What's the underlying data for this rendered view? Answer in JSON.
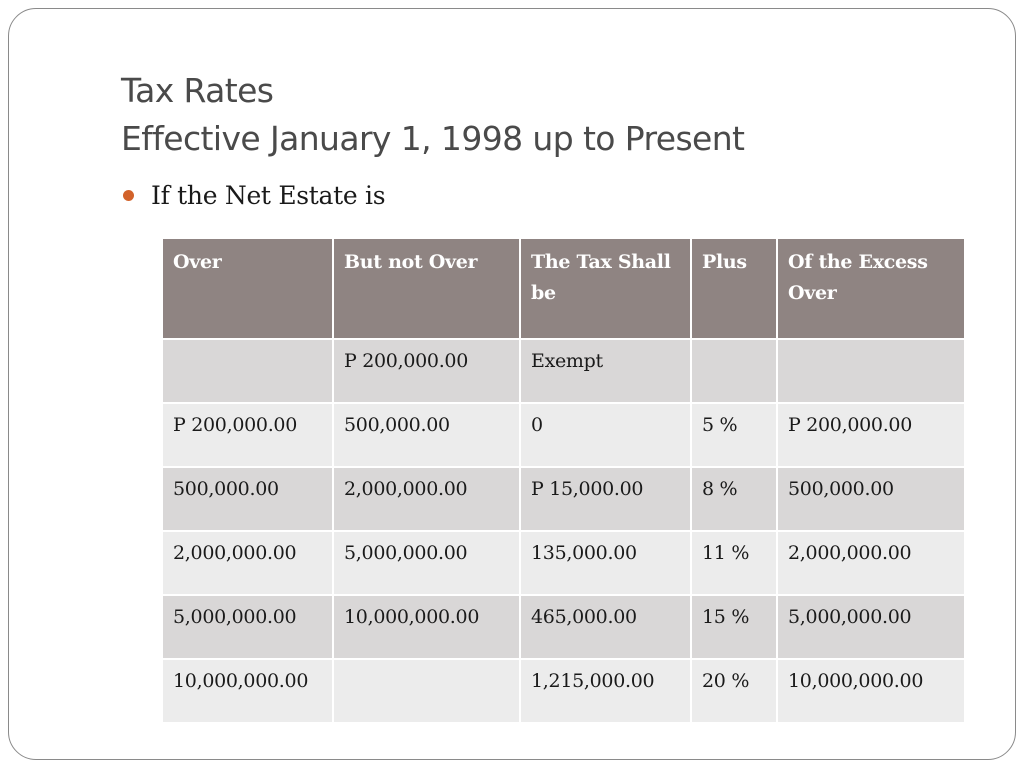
{
  "slide": {
    "title_line1": "Tax Rates",
    "title_line2": "Effective January 1, 1998 up to Present",
    "bullet": "If the Net Estate is",
    "bullet_color": "#d2622a"
  },
  "table": {
    "headers": [
      "Over",
      "But not Over",
      "The Tax Shall be",
      "Plus",
      "Of the Excess Over"
    ],
    "rows": [
      [
        "",
        "P 200,000.00",
        "Exempt",
        "",
        ""
      ],
      [
        "P 200,000.00",
        "500,000.00",
        "0",
        "5 %",
        "P 200,000.00"
      ],
      [
        "500,000.00",
        "2,000,000.00",
        "P 15,000.00",
        "8 %",
        "500,000.00"
      ],
      [
        "2,000,000.00",
        "5,000,000.00",
        "135,000.00",
        "11 %",
        "2,000,000.00"
      ],
      [
        "5,000,000.00",
        "10,000,000.00",
        "465,000.00",
        "15 %",
        "5,000,000.00"
      ],
      [
        "10,000,000.00",
        "",
        "1,215,000.00",
        "20 %",
        "10,000,000.00"
      ]
    ],
    "header_color": "#8f8482",
    "row_colors": [
      "#d9d7d7",
      "#ececec"
    ]
  }
}
